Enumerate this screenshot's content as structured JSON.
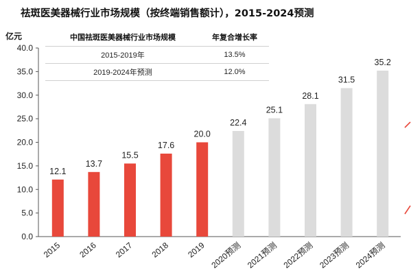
{
  "title": "祛斑医美器械行业市场规模（按终端销售额计），2015-2024预测",
  "unit_label": "亿元",
  "cagr_table": {
    "headers": [
      "中国祛斑医美器械行业市场规模",
      "年复合增长率"
    ],
    "rows": [
      [
        "2015-2019年",
        "13.5%"
      ],
      [
        "2019-2024年预测",
        "12.0%"
      ]
    ]
  },
  "colors": {
    "actual": "#e8483b",
    "forecast": "#dcdcdc",
    "axis": "#555555"
  },
  "chart_data": {
    "type": "bar",
    "title": "祛斑医美器械行业市场规模（按终端销售额计），2015-2024预测",
    "xlabel": "",
    "ylabel": "亿元",
    "ylim": [
      0,
      40
    ],
    "yticks": [
      "0.0",
      "5.0",
      "10.0",
      "15.0",
      "20.0",
      "25.0",
      "30.0",
      "35.0",
      "40.0"
    ],
    "categories": [
      "2015",
      "2016",
      "2017",
      "2018",
      "2019",
      "2020预测",
      "2021预测",
      "2022预测",
      "2023预测",
      "2024预测"
    ],
    "values": [
      12.1,
      13.7,
      15.5,
      17.6,
      20.0,
      22.4,
      25.1,
      28.1,
      31.5,
      35.2
    ],
    "value_labels": [
      "12.1",
      "13.7",
      "15.5",
      "17.6",
      "20.0",
      "22.4",
      "25.1",
      "28.1",
      "31.5",
      "35.2"
    ],
    "bar_types": [
      "actual",
      "actual",
      "actual",
      "actual",
      "actual",
      "forecast",
      "forecast",
      "forecast",
      "forecast",
      "forecast"
    ],
    "grid": false,
    "legend": "none"
  }
}
